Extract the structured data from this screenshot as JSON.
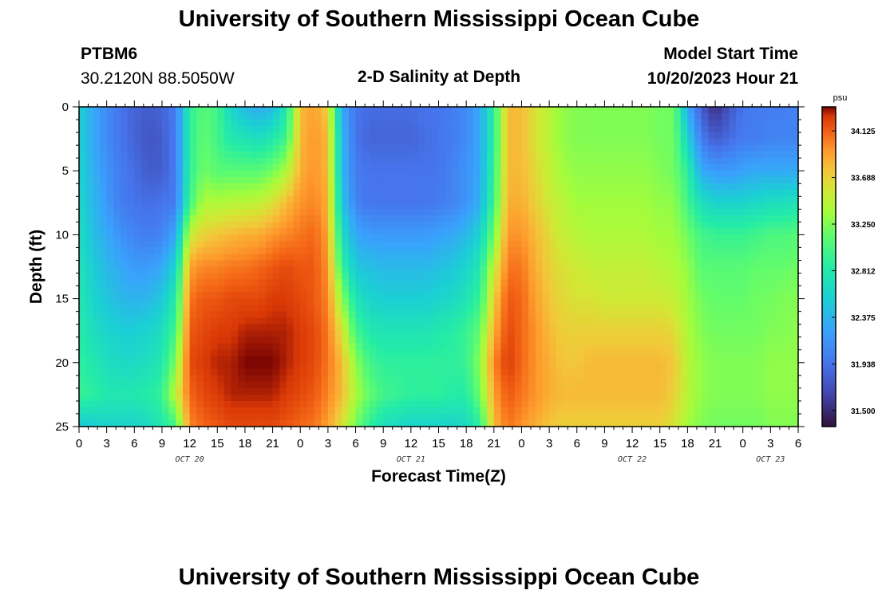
{
  "header": {
    "title": "University of Southern Mississippi Ocean Cube",
    "station": "PTBM6",
    "coords": "30.2120N  88.5050W",
    "subtitle": "2-D Salinity at Depth",
    "model_start_label": "Model Start Time",
    "model_start_value": "10/20/2023 Hour 21"
  },
  "footer": {
    "title": "University of Southern Mississippi Ocean Cube"
  },
  "chart_data": {
    "type": "heatmap",
    "xlabel": "Forecast Time(Z)",
    "ylabel": "Depth (ft)",
    "x_ticks": [
      "0",
      "3",
      "6",
      "9",
      "12",
      "15",
      "18",
      "21",
      "0",
      "3",
      "6",
      "9",
      "12",
      "15",
      "18",
      "21",
      "0",
      "3",
      "6",
      "9",
      "12",
      "15",
      "18",
      "21",
      "0",
      "3",
      "6"
    ],
    "x_range_hours": [
      0,
      78
    ],
    "date_labels": [
      {
        "label": "OCT 20",
        "hour": 12
      },
      {
        "label": "OCT 21",
        "hour": 36
      },
      {
        "label": "OCT 22",
        "hour": 60
      },
      {
        "label": "OCT 23",
        "hour": 75
      }
    ],
    "y_ticks": [
      0,
      5,
      10,
      15,
      20,
      25
    ],
    "ylim": [
      0,
      25
    ],
    "y_inverted": true,
    "colorbar": {
      "unit": "psu",
      "ticks": [
        "34.125",
        "33.688",
        "33.250",
        "32.812",
        "32.375",
        "31.938",
        "31.500"
      ],
      "range": [
        31.35,
        34.35
      ]
    },
    "hours": [
      0,
      1.5,
      3,
      4.5,
      6,
      7.5,
      9,
      10.5,
      12,
      13.5,
      15,
      16.5,
      18,
      19.5,
      21,
      22.5,
      24,
      25.5,
      27,
      28.5,
      30,
      31.5,
      33,
      34.5,
      36,
      37.5,
      39,
      40.5,
      42,
      43.5,
      45,
      46.5,
      48,
      49.5,
      51,
      52.5,
      54,
      55.5,
      57,
      58.5,
      60,
      61.5,
      63,
      64.5,
      66,
      67.5,
      69,
      70.5,
      72,
      73.5,
      75,
      76.5,
      78
    ],
    "depths": [
      0,
      2.5,
      5,
      7.5,
      10,
      12.5,
      15,
      17.5,
      20,
      22.5,
      25
    ],
    "salinity": [
      [
        32.6,
        32.3,
        32.1,
        31.95,
        31.85,
        31.8,
        31.85,
        32.0,
        32.9,
        33.1,
        33.0,
        32.6,
        32.4,
        32.3,
        32.4,
        32.8,
        33.8,
        33.9,
        33.7,
        32.3,
        31.95,
        31.9,
        31.9,
        31.9,
        31.9,
        31.95,
        31.95,
        32.0,
        32.1,
        32.3,
        32.9,
        33.8,
        33.8,
        33.6,
        33.45,
        33.3,
        33.25,
        33.25,
        33.25,
        33.25,
        33.25,
        33.25,
        33.2,
        33.2,
        32.3,
        31.8,
        31.5,
        31.75,
        31.95,
        32.0,
        32.0,
        32.0,
        32.05
      ],
      [
        32.6,
        32.3,
        32.1,
        31.95,
        31.85,
        31.75,
        31.8,
        32.0,
        32.9,
        33.15,
        33.0,
        32.8,
        32.75,
        32.7,
        32.8,
        33.0,
        33.8,
        33.95,
        33.8,
        32.4,
        31.95,
        31.85,
        31.85,
        31.85,
        31.85,
        31.9,
        31.95,
        32.0,
        32.1,
        32.3,
        32.9,
        33.8,
        33.8,
        33.6,
        33.45,
        33.3,
        33.25,
        33.25,
        33.25,
        33.25,
        33.25,
        33.25,
        33.2,
        33.2,
        32.6,
        32.0,
        31.8,
        31.9,
        32.0,
        32.0,
        32.05,
        32.05,
        32.05
      ],
      [
        32.6,
        32.35,
        32.15,
        32.0,
        31.9,
        31.8,
        31.8,
        32.0,
        32.9,
        33.2,
        33.1,
        33.1,
        33.1,
        33.1,
        33.2,
        33.4,
        33.85,
        33.95,
        33.8,
        32.4,
        32.0,
        31.95,
        31.95,
        31.95,
        31.95,
        31.95,
        31.95,
        32.05,
        32.15,
        32.3,
        32.95,
        33.8,
        33.8,
        33.65,
        33.5,
        33.35,
        33.3,
        33.3,
        33.3,
        33.3,
        33.3,
        33.3,
        33.25,
        33.2,
        32.9,
        32.3,
        32.2,
        32.2,
        32.25,
        32.3,
        32.3,
        32.3,
        32.3
      ],
      [
        32.65,
        32.4,
        32.2,
        32.0,
        31.95,
        31.9,
        31.95,
        32.0,
        33.0,
        33.4,
        33.4,
        33.45,
        33.45,
        33.5,
        33.6,
        33.8,
        33.95,
        34.0,
        33.85,
        32.5,
        32.05,
        31.95,
        31.95,
        31.95,
        31.95,
        31.95,
        32.0,
        32.05,
        32.15,
        32.35,
        33.0,
        33.85,
        33.85,
        33.7,
        33.55,
        33.45,
        33.35,
        33.35,
        33.35,
        33.35,
        33.35,
        33.35,
        33.3,
        33.3,
        33.0,
        32.7,
        32.6,
        32.6,
        32.6,
        32.65,
        32.7,
        32.7,
        32.75
      ],
      [
        32.7,
        32.45,
        32.3,
        32.15,
        32.05,
        32.0,
        32.05,
        32.3,
        33.5,
        33.7,
        33.75,
        33.8,
        33.85,
        33.85,
        33.95,
        34.0,
        34.05,
        34.1,
        33.9,
        32.7,
        32.3,
        32.2,
        32.2,
        32.2,
        32.2,
        32.2,
        32.25,
        32.3,
        32.4,
        32.6,
        33.2,
        33.95,
        33.95,
        33.8,
        33.65,
        33.5,
        33.45,
        33.4,
        33.4,
        33.4,
        33.4,
        33.4,
        33.35,
        33.35,
        33.2,
        33.0,
        32.95,
        32.95,
        32.95,
        33.0,
        33.05,
        33.05,
        33.1
      ],
      [
        32.75,
        32.55,
        32.4,
        32.3,
        32.2,
        32.2,
        32.3,
        32.6,
        33.9,
        34.0,
        34.0,
        34.05,
        34.05,
        34.1,
        34.15,
        34.2,
        34.15,
        34.15,
        33.95,
        32.95,
        32.5,
        32.45,
        32.4,
        32.4,
        32.4,
        32.4,
        32.45,
        32.5,
        32.6,
        32.8,
        33.5,
        34.05,
        34.05,
        33.85,
        33.7,
        33.6,
        33.55,
        33.5,
        33.5,
        33.5,
        33.5,
        33.5,
        33.45,
        33.4,
        33.3,
        33.1,
        33.1,
        33.1,
        33.1,
        33.15,
        33.15,
        33.15,
        33.2
      ],
      [
        32.8,
        32.6,
        32.5,
        32.4,
        32.35,
        32.4,
        32.5,
        32.85,
        34.05,
        34.15,
        34.15,
        34.2,
        34.2,
        34.2,
        34.25,
        34.25,
        34.2,
        34.15,
        34.0,
        33.3,
        32.75,
        32.6,
        32.55,
        32.55,
        32.55,
        32.55,
        32.6,
        32.65,
        32.75,
        32.95,
        33.7,
        34.15,
        34.1,
        33.9,
        33.75,
        33.65,
        33.6,
        33.6,
        33.55,
        33.55,
        33.55,
        33.55,
        33.55,
        33.5,
        33.35,
        33.2,
        33.15,
        33.15,
        33.15,
        33.2,
        33.2,
        33.25,
        33.25
      ],
      [
        32.85,
        32.7,
        32.6,
        32.55,
        32.55,
        32.6,
        32.7,
        33.0,
        34.15,
        34.2,
        34.25,
        34.25,
        34.3,
        34.3,
        34.3,
        34.3,
        34.25,
        34.2,
        34.05,
        33.6,
        33.0,
        32.8,
        32.75,
        32.75,
        32.75,
        32.75,
        32.8,
        32.85,
        32.95,
        33.15,
        33.85,
        34.2,
        34.1,
        33.95,
        33.8,
        33.7,
        33.7,
        33.7,
        33.7,
        33.7,
        33.7,
        33.7,
        33.7,
        33.65,
        33.4,
        33.25,
        33.2,
        33.2,
        33.2,
        33.2,
        33.25,
        33.25,
        33.3
      ],
      [
        32.9,
        32.8,
        32.7,
        32.65,
        32.65,
        32.7,
        32.8,
        33.25,
        34.2,
        34.25,
        34.3,
        34.3,
        34.35,
        34.35,
        34.35,
        34.3,
        34.25,
        34.2,
        34.05,
        33.8,
        33.3,
        33.0,
        32.9,
        32.9,
        32.9,
        32.9,
        32.9,
        32.9,
        32.95,
        33.3,
        34.0,
        34.25,
        34.1,
        33.95,
        33.85,
        33.75,
        33.75,
        33.8,
        33.8,
        33.8,
        33.8,
        33.8,
        33.8,
        33.75,
        33.45,
        33.3,
        33.25,
        33.25,
        33.25,
        33.25,
        33.3,
        33.3,
        33.3
      ],
      [
        32.95,
        32.9,
        32.8,
        32.8,
        32.8,
        32.85,
        32.95,
        33.5,
        34.1,
        34.2,
        34.25,
        34.3,
        34.3,
        34.3,
        34.3,
        34.25,
        34.2,
        34.15,
        34.0,
        33.8,
        33.4,
        33.15,
        33.0,
        32.95,
        32.9,
        32.9,
        32.9,
        32.85,
        32.85,
        33.2,
        33.9,
        34.15,
        34.05,
        33.95,
        33.85,
        33.8,
        33.8,
        33.8,
        33.8,
        33.8,
        33.8,
        33.8,
        33.8,
        33.7,
        33.45,
        33.3,
        33.25,
        33.25,
        33.25,
        33.25,
        33.3,
        33.3,
        33.3
      ],
      [
        32.5,
        32.55,
        32.6,
        32.6,
        32.6,
        32.65,
        32.8,
        33.0,
        34.0,
        34.1,
        34.15,
        34.2,
        34.2,
        34.2,
        34.2,
        34.15,
        34.1,
        34.05,
        33.9,
        33.6,
        33.2,
        32.9,
        32.7,
        32.65,
        32.6,
        32.6,
        32.6,
        32.6,
        32.65,
        32.9,
        33.8,
        34.05,
        33.95,
        33.85,
        33.75,
        33.7,
        33.7,
        33.7,
        33.7,
        33.7,
        33.7,
        33.7,
        33.7,
        33.6,
        33.35,
        33.25,
        33.2,
        33.2,
        33.2,
        33.2,
        33.25,
        33.25,
        33.25
      ]
    ]
  }
}
